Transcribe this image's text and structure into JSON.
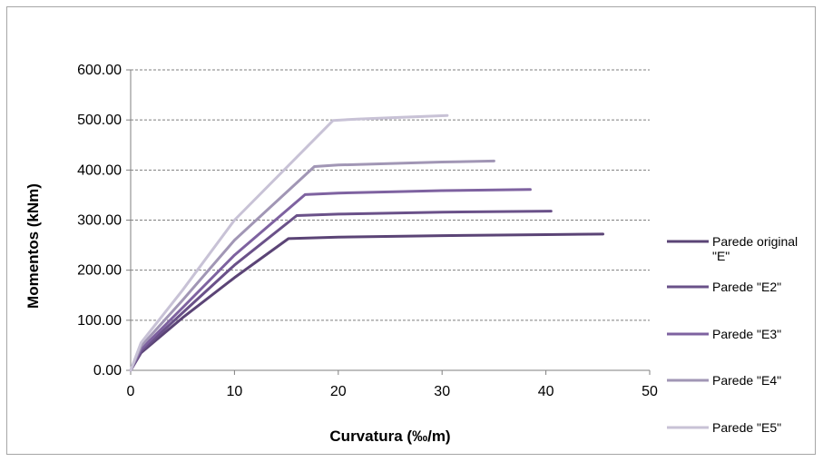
{
  "chart_data": {
    "type": "line",
    "xlabel": "Curvatura (‰/m)",
    "ylabel": "Momentos (kNm)",
    "xlim": [
      0,
      50
    ],
    "ylim": [
      0,
      600
    ],
    "x_ticks": [
      "0",
      "10",
      "20",
      "30",
      "40",
      "50"
    ],
    "y_ticks": [
      "0.00",
      "100.00",
      "200.00",
      "300.00",
      "400.00",
      "500.00",
      "600.00"
    ],
    "grid": "horizontal dashed",
    "legend_position": "right",
    "series": [
      {
        "name": "Parede original \"E\"",
        "color": "#5b4476",
        "points": [
          [
            0,
            0
          ],
          [
            1,
            35
          ],
          [
            5,
            105
          ],
          [
            10,
            185
          ],
          [
            15.2,
            263
          ],
          [
            20,
            266
          ],
          [
            30,
            269
          ],
          [
            40,
            271
          ],
          [
            45.5,
            272
          ]
        ]
      },
      {
        "name": "Parede \"E2\"",
        "color": "#6a5189",
        "points": [
          [
            0,
            0
          ],
          [
            1,
            38
          ],
          [
            5,
            115
          ],
          [
            10,
            210
          ],
          [
            16,
            309
          ],
          [
            20,
            312
          ],
          [
            30,
            316
          ],
          [
            40.5,
            318
          ]
        ]
      },
      {
        "name": "Parede \"E3\"",
        "color": "#7e62a0",
        "points": [
          [
            0,
            0
          ],
          [
            1,
            42
          ],
          [
            5,
            125
          ],
          [
            10,
            230
          ],
          [
            16.8,
            351
          ],
          [
            20,
            354
          ],
          [
            30,
            359
          ],
          [
            38.5,
            361
          ]
        ]
      },
      {
        "name": "Parede \"E4\"",
        "color": "#a196b5",
        "points": [
          [
            0,
            0
          ],
          [
            1,
            48
          ],
          [
            5,
            140
          ],
          [
            10,
            260
          ],
          [
            17.7,
            407
          ],
          [
            20,
            410
          ],
          [
            30,
            416
          ],
          [
            35,
            418
          ]
        ]
      },
      {
        "name": "Parede \"E5\"",
        "color": "#c8c2d6",
        "points": [
          [
            0,
            0
          ],
          [
            1,
            55
          ],
          [
            5,
            160
          ],
          [
            10,
            300
          ],
          [
            19.5,
            499
          ],
          [
            22,
            502
          ],
          [
            30.5,
            509
          ]
        ]
      }
    ]
  }
}
